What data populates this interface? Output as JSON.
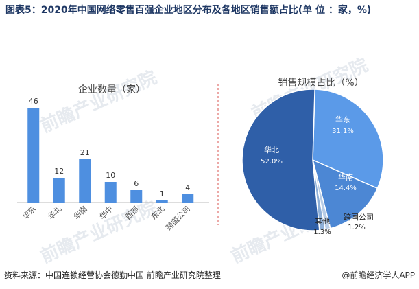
{
  "title": "图表5：2020年中国网络零售百强企业地区分布及各地区销售额占比(单 位 ：家，%)",
  "watermark": "前瞻产业研究院",
  "footer": {
    "source": "资料来源：中国连锁经营协会德勤中国 前瞻产业研究院整理",
    "credit": "@前瞻经济学人APP"
  },
  "chart_data": [
    {
      "type": "bar",
      "title": "企业数量（家）",
      "categories": [
        "华东",
        "华北",
        "华南",
        "华中",
        "西部",
        "东北",
        "跨国公司"
      ],
      "values": [
        46,
        12,
        21,
        10,
        6,
        1,
        4
      ],
      "ylim": [
        0,
        50
      ],
      "grid": false,
      "color": "#4e8fe0"
    },
    {
      "type": "pie",
      "title": "销售规模占比（%）",
      "slices": [
        {
          "label": "华东",
          "value": 31.1,
          "display": "31.1%",
          "color": "#5b9ae8"
        },
        {
          "label": "华南",
          "value": 14.4,
          "display": "14.4%",
          "color": "#4c87d4"
        },
        {
          "label": "跨国公司",
          "value": 1.2,
          "display": "1.2%",
          "color": "#b9cde6"
        },
        {
          "label": "其他",
          "value": 1.3,
          "display": "1.3%",
          "color": "#8fb0d8"
        },
        {
          "label": "华北",
          "value": 52.0,
          "display": "52.0%",
          "color": "#2f5fa8"
        }
      ]
    }
  ]
}
